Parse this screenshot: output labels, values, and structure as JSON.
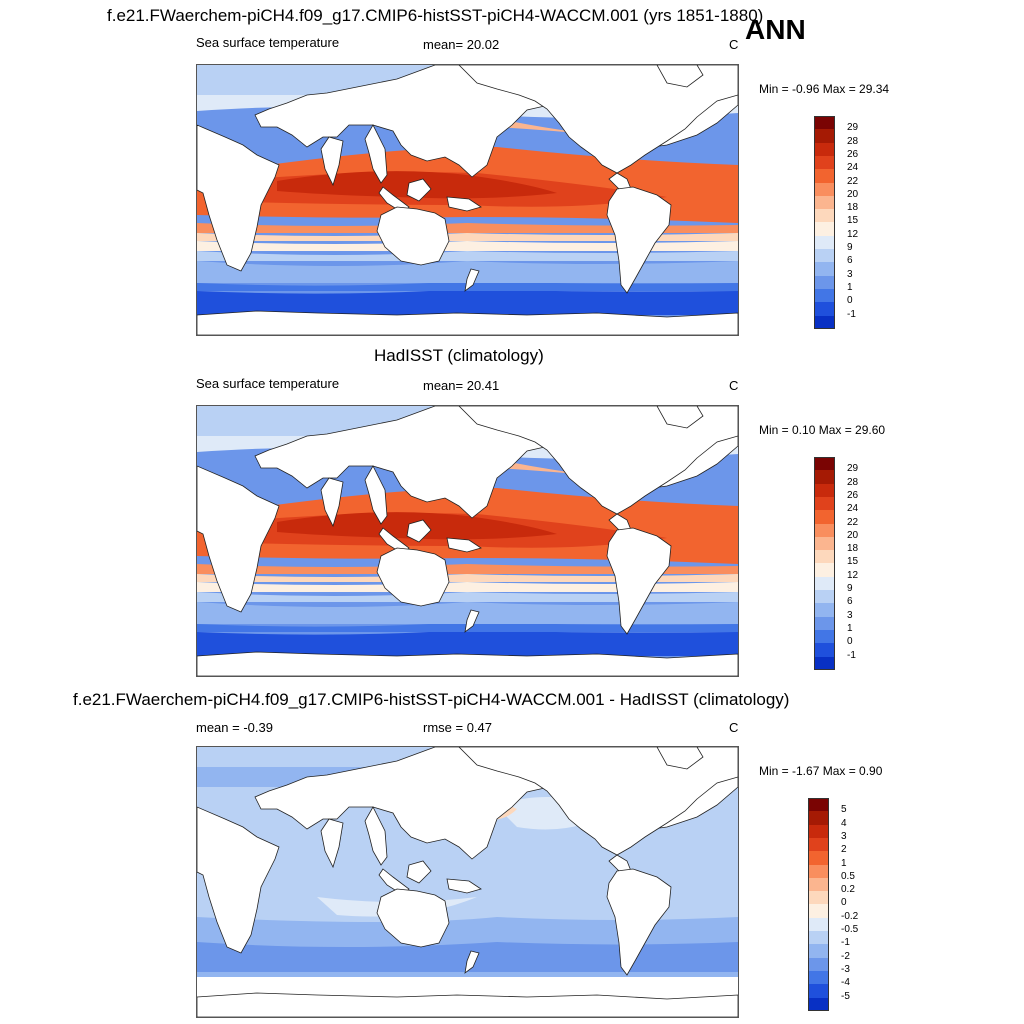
{
  "header": {
    "title": "f.e21.FWaerchem-piCH4.f09_g17.CMIP6-histSST-piCH4-WACCM.001 (yrs 1851-1880)",
    "season": "ANN"
  },
  "panels": [
    {
      "id": "model",
      "title": "",
      "left_label": "Sea surface temperature",
      "center_label": "mean=  20.02",
      "units": "C",
      "minmax": "Min =  -0.96 Max =  29.34",
      "colorbar": {
        "labels": [
          "29",
          "28",
          "26",
          "24",
          "22",
          "20",
          "18",
          "15",
          "12",
          "9",
          "6",
          "3",
          "1",
          "0",
          "-1"
        ],
        "colors": [
          "#7a0403",
          "#a51a04",
          "#c82a0c",
          "#e0421c",
          "#f2642f",
          "#f98e5e",
          "#fbb58f",
          "#fdd8bc",
          "#fdf0e2",
          "#dfeaf8",
          "#b9d1f4",
          "#92b5f0",
          "#6c96ea",
          "#4276e6",
          "#1f50dc",
          "#0830c4"
        ]
      }
    },
    {
      "id": "obs",
      "title": "HadISST (climatology)",
      "left_label": "Sea surface temperature",
      "center_label": "mean=  20.41",
      "units": "C",
      "minmax": "Min =   0.10 Max =  29.60",
      "colorbar": {
        "labels": [
          "29",
          "28",
          "26",
          "24",
          "22",
          "20",
          "18",
          "15",
          "12",
          "9",
          "6",
          "3",
          "1",
          "0",
          "-1"
        ],
        "colors": [
          "#7a0403",
          "#a51a04",
          "#c82a0c",
          "#e0421c",
          "#f2642f",
          "#f98e5e",
          "#fbb58f",
          "#fdd8bc",
          "#fdf0e2",
          "#dfeaf8",
          "#b9d1f4",
          "#92b5f0",
          "#6c96ea",
          "#4276e6",
          "#1f50dc",
          "#0830c4"
        ]
      }
    },
    {
      "id": "diff",
      "title": "f.e21.FWaerchem-piCH4.f09_g17.CMIP6-histSST-piCH4-WACCM.001 - HadISST (climatology)",
      "left_label": "mean =  -0.39",
      "center_label": "rmse =   0.47",
      "units": "C",
      "minmax": "Min =  -1.67 Max =   0.90",
      "colorbar": {
        "labels": [
          "5",
          "4",
          "3",
          "2",
          "1",
          "0.5",
          "0.2",
          "0",
          "-0.2",
          "-0.5",
          "-1",
          "-2",
          "-3",
          "-4",
          "-5"
        ],
        "colors": [
          "#7a0403",
          "#a51a04",
          "#c82a0c",
          "#e0421c",
          "#f2642f",
          "#f98e5e",
          "#fbb58f",
          "#fdd8bc",
          "#fdf0e2",
          "#dfeaf8",
          "#b9d1f4",
          "#92b5f0",
          "#6c96ea",
          "#4276e6",
          "#1f50dc",
          "#0830c4"
        ]
      }
    }
  ]
}
